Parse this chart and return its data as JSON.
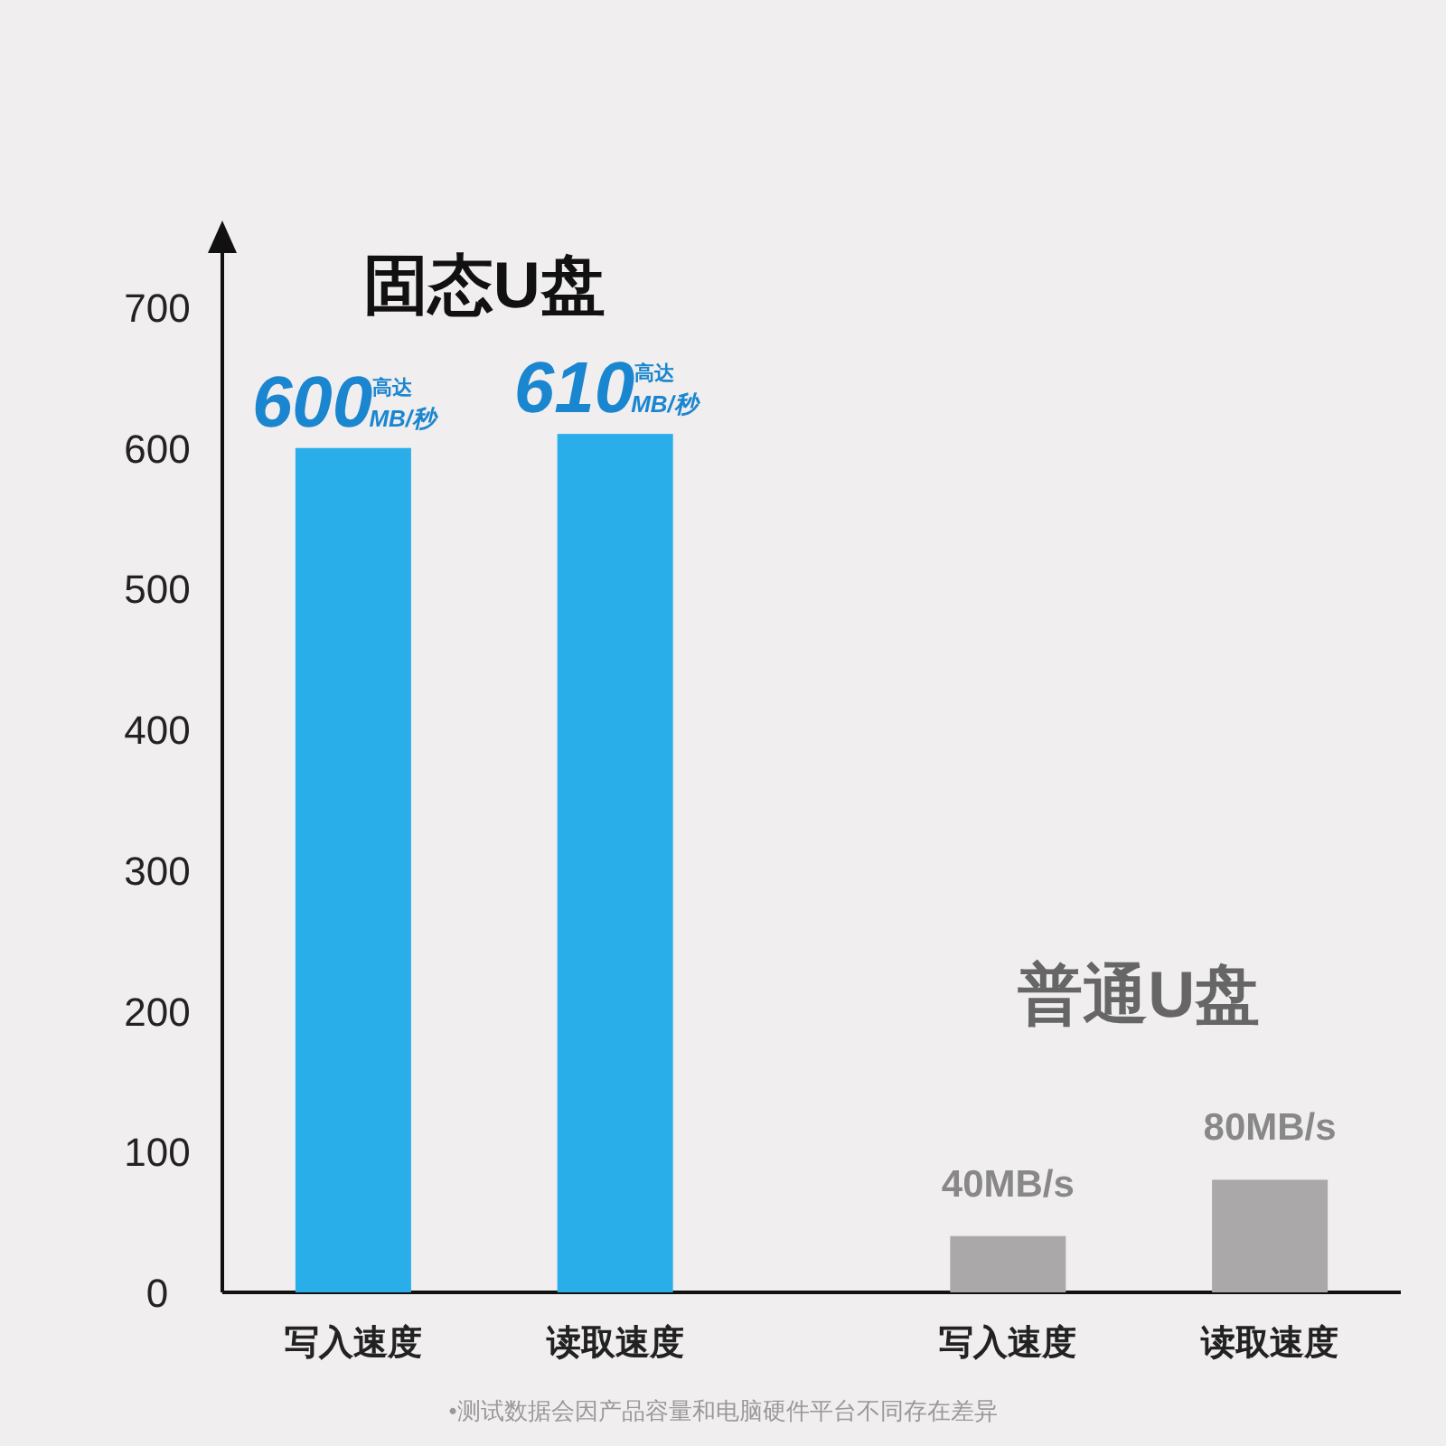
{
  "chart_data": {
    "type": "bar",
    "categories": [
      "写入速度",
      "读取速度",
      "写入速度",
      "读取速度"
    ],
    "series": [
      {
        "name": "固态U盘",
        "color": "#29aee9",
        "values": [
          600,
          610,
          null,
          null
        ],
        "value_labels": [
          "600$^{高达}$$_{MB/秒}$",
          "610$^{高达}$$_{MB/秒}$",
          null,
          null
        ]
      },
      {
        "name": "普通U盘",
        "color": "#aaa8a8",
        "values": [
          null,
          null,
          40,
          80
        ],
        "value_labels": [
          null,
          null,
          "40MB/s",
          "80MB/s"
        ]
      }
    ],
    "ylim": [
      0,
      700
    ],
    "yticks": [
      0,
      100,
      200,
      300,
      400,
      500,
      600,
      700
    ],
    "grid": false,
    "legend": false,
    "annotations": [
      "•测试数据会因产品容量和电脑硬件平台不同存在差异"
    ]
  }
}
